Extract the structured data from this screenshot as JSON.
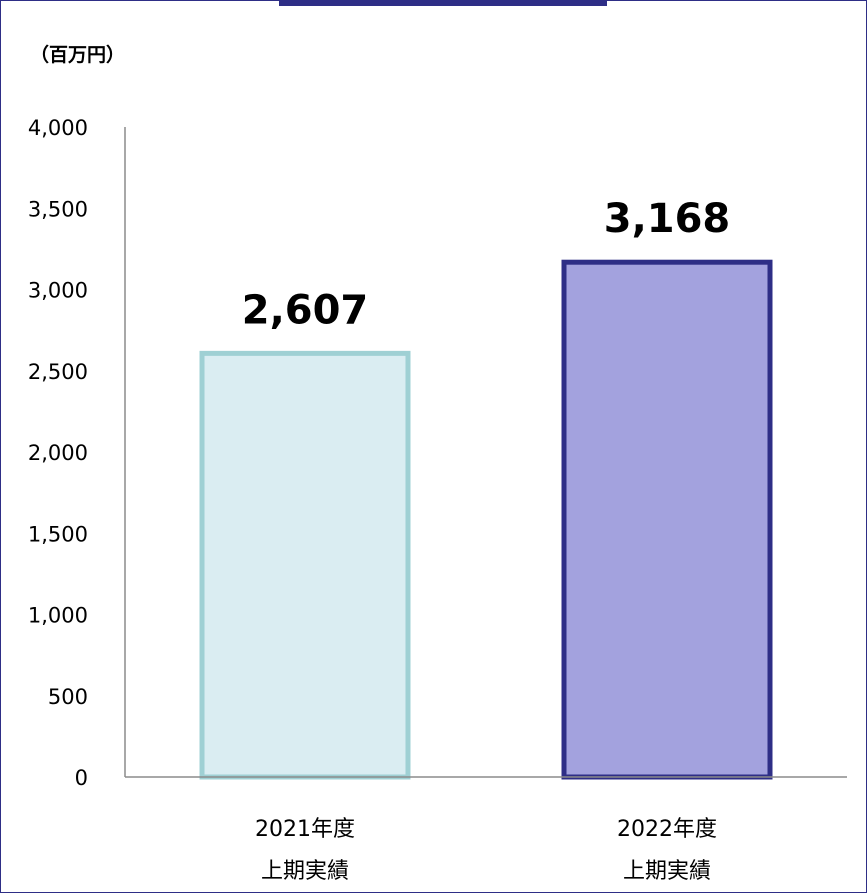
{
  "chart_data": {
    "type": "bar",
    "unit_label": "（百万円）",
    "categories": [
      {
        "line1": "2021年度",
        "line2": "上期実績"
      },
      {
        "line1": "2022年度",
        "line2": "上期実績"
      }
    ],
    "values": [
      2607,
      3168
    ],
    "data_labels": [
      "2,607",
      "3,168"
    ],
    "ylim": [
      0,
      4000
    ],
    "yticks": [
      {
        "v": 0,
        "label": "0"
      },
      {
        "v": 500,
        "label": "500"
      },
      {
        "v": 1000,
        "label": "1,000"
      },
      {
        "v": 1500,
        "label": "1,500"
      },
      {
        "v": 2000,
        "label": "2,000"
      },
      {
        "v": 2500,
        "label": "2,500"
      },
      {
        "v": 3000,
        "label": "3,000"
      },
      {
        "v": 3500,
        "label": "3,500"
      },
      {
        "v": 4000,
        "label": "4,000"
      }
    ],
    "grid": false,
    "bar_styles": [
      {
        "fill": "#daedf2",
        "stroke": "#9fd0d4"
      },
      {
        "fill": "#a3a2de",
        "stroke": "#2e2e86"
      }
    ],
    "axis_color": "#8c8c8c"
  }
}
